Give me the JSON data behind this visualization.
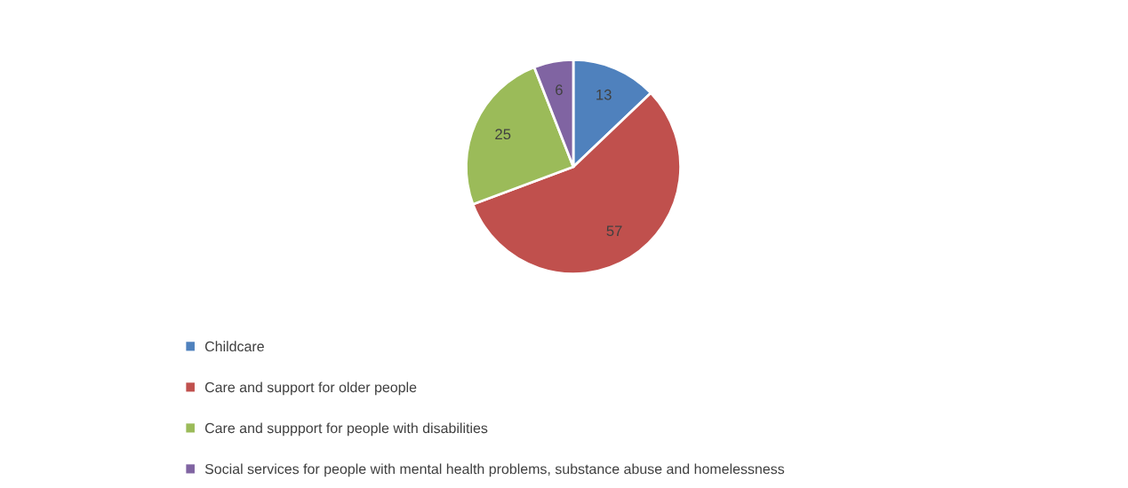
{
  "chart_data": {
    "type": "pie",
    "categories": [
      "Childcare",
      "Care and support for older people",
      "Care and suppport for people with disabilities",
      "Social services for people with mental health problems, substance abuse and homelessness"
    ],
    "values": [
      13,
      57,
      25,
      6
    ],
    "colors": [
      "#4f81bd",
      "#c0504d",
      "#9bbb59",
      "#8064a2"
    ],
    "data_labels": true,
    "legend": "bottom"
  }
}
